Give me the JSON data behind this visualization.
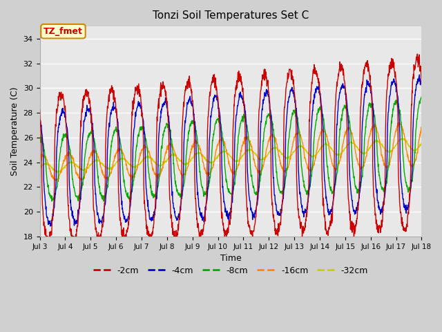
{
  "title": "Tonzi Soil Temperatures Set C",
  "xlabel": "Time",
  "ylabel": "Soil Temperature (C)",
  "ylim": [
    18,
    35
  ],
  "xtick_labels": [
    "Jul 3",
    "Jul 4",
    "Jul 5",
    "Jul 6",
    "Jul 7",
    "Jul 8",
    "Jul 9",
    "Jul 10",
    "Jul 11",
    "Jul 12",
    "Jul 13",
    "Jul 14",
    "Jul 15",
    "Jul 16",
    "Jul 17",
    "Jul 18"
  ],
  "ytick_labels": [
    18,
    20,
    22,
    24,
    26,
    28,
    30,
    32,
    34
  ],
  "series_colors": [
    "#cc0000",
    "#0000cc",
    "#00aa00",
    "#ff8800",
    "#cccc00"
  ],
  "series_labels": [
    "-2cm",
    "-4cm",
    "-8cm",
    "-16cm",
    "-32cm"
  ],
  "fig_bg_color": "#d0d0d0",
  "plot_bg_color": "#e8e8e8",
  "annotation_text": "TZ_fmet",
  "annotation_bg": "#ffffcc",
  "annotation_border": "#cc8800",
  "annotation_text_color": "#cc0000"
}
